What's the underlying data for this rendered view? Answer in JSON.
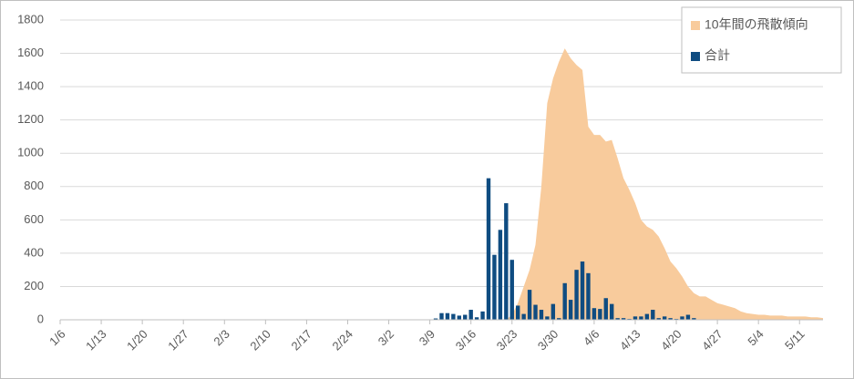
{
  "chart_data": {
    "type": "combo",
    "categories": [
      "1/6",
      null,
      null,
      null,
      null,
      null,
      null,
      "1/13",
      null,
      null,
      null,
      null,
      null,
      null,
      "1/20",
      null,
      null,
      null,
      null,
      null,
      null,
      "1/27",
      null,
      null,
      null,
      null,
      null,
      null,
      "2/3",
      null,
      null,
      null,
      null,
      null,
      null,
      "2/10",
      null,
      null,
      null,
      null,
      null,
      null,
      "2/17",
      null,
      null,
      null,
      null,
      null,
      null,
      "2/24",
      null,
      null,
      null,
      null,
      null,
      null,
      "3/2",
      null,
      null,
      null,
      null,
      null,
      null,
      "3/9",
      null,
      null,
      null,
      null,
      null,
      null,
      "3/16",
      null,
      null,
      null,
      null,
      null,
      null,
      "3/23",
      null,
      null,
      null,
      null,
      null,
      null,
      "3/30",
      null,
      null,
      null,
      null,
      null,
      null,
      "4/6",
      null,
      null,
      null,
      null,
      null,
      null,
      "4/13",
      null,
      null,
      null,
      null,
      null,
      null,
      "4/20",
      null,
      null,
      null,
      null,
      null,
      null,
      "4/27",
      null,
      null,
      null,
      null,
      null,
      null,
      "5/4",
      null,
      null,
      null,
      null,
      null,
      null,
      "5/11",
      null,
      null,
      null,
      null
    ],
    "series": [
      {
        "name": "10年間の飛散傾向",
        "type": "area",
        "color": "#f8cb9c",
        "values": [
          0,
          0,
          0,
          0,
          0,
          0,
          0,
          0,
          0,
          0,
          0,
          0,
          0,
          0,
          0,
          0,
          0,
          0,
          0,
          0,
          0,
          0,
          0,
          0,
          0,
          0,
          0,
          0,
          0,
          0,
          0,
          0,
          0,
          0,
          0,
          0,
          0,
          0,
          0,
          0,
          0,
          0,
          0,
          0,
          0,
          0,
          0,
          0,
          0,
          0,
          0,
          0,
          0,
          0,
          0,
          0,
          0,
          0,
          0,
          0,
          0,
          0,
          0,
          0,
          0,
          0,
          0,
          0,
          0,
          0,
          0,
          0,
          0,
          0,
          0,
          0,
          0,
          30,
          100,
          200,
          300,
          450,
          800,
          1300,
          1450,
          1550,
          1630,
          1570,
          1530,
          1500,
          1160,
          1110,
          1110,
          1070,
          1080,
          970,
          850,
          780,
          700,
          600,
          560,
          540,
          500,
          430,
          350,
          310,
          260,
          200,
          160,
          140,
          140,
          120,
          100,
          90,
          80,
          70,
          50,
          40,
          35,
          30,
          30,
          25,
          25,
          25,
          20,
          20,
          20,
          20,
          15,
          15,
          10
        ]
      },
      {
        "name": "合計",
        "type": "bar",
        "color": "#0f4c81",
        "values": [
          0,
          0,
          0,
          0,
          0,
          0,
          0,
          0,
          0,
          0,
          0,
          0,
          0,
          0,
          0,
          0,
          0,
          0,
          0,
          0,
          0,
          0,
          0,
          0,
          0,
          0,
          0,
          0,
          0,
          0,
          0,
          0,
          0,
          0,
          0,
          0,
          0,
          0,
          0,
          0,
          0,
          0,
          0,
          0,
          0,
          0,
          0,
          0,
          0,
          0,
          0,
          0,
          0,
          0,
          0,
          0,
          0,
          0,
          0,
          0,
          0,
          0,
          0,
          0,
          8,
          40,
          40,
          35,
          25,
          30,
          60,
          15,
          50,
          850,
          390,
          540,
          700,
          360,
          85,
          35,
          180,
          90,
          60,
          20,
          95,
          10,
          220,
          120,
          300,
          350,
          280,
          70,
          65,
          130,
          95,
          10,
          10,
          5,
          20,
          20,
          35,
          60,
          10,
          20,
          10,
          5,
          20,
          30,
          10,
          0,
          0,
          0,
          0,
          0,
          0,
          0,
          0,
          0,
          0,
          0,
          0,
          0,
          0,
          0,
          0,
          0,
          0,
          0,
          0,
          0,
          0
        ]
      }
    ],
    "ylim": [
      0,
      1800
    ],
    "yticks": [
      0,
      200,
      400,
      600,
      800,
      1000,
      1200,
      1400,
      1600,
      1800
    ],
    "grid": true,
    "legend": "top-right"
  }
}
